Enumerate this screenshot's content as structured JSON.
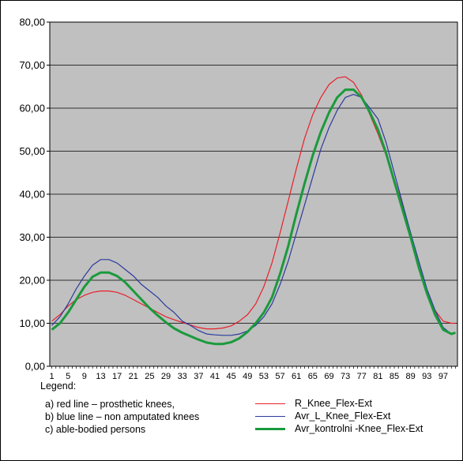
{
  "chart_data": {
    "type": "line",
    "title": "",
    "xlabel": "",
    "ylabel": "",
    "ylim": [
      0,
      80
    ],
    "xlim": [
      1,
      100
    ],
    "yticks": [
      "0,00",
      "10,00",
      "20,00",
      "30,00",
      "40,00",
      "50,00",
      "60,00",
      "70,00",
      "80,00"
    ],
    "xticks": [
      "1",
      "5",
      "9",
      "13",
      "17",
      "21",
      "25",
      "29",
      "33",
      "37",
      "41",
      "45",
      "49",
      "53",
      "57",
      "61",
      "65",
      "69",
      "73",
      "77",
      "81",
      "85",
      "89",
      "93",
      "97"
    ],
    "grid": true,
    "plot_background": "#c0c0c0",
    "series": [
      {
        "name": "R_Knee_Flex-Ext",
        "color": "#e8202a",
        "x": [
          1,
          3,
          5,
          7,
          9,
          11,
          13,
          15,
          17,
          19,
          21,
          23,
          25,
          27,
          29,
          31,
          33,
          35,
          37,
          39,
          41,
          43,
          45,
          47,
          49,
          51,
          53,
          55,
          57,
          59,
          61,
          63,
          65,
          67,
          69,
          71,
          73,
          75,
          77,
          79,
          81,
          83,
          85,
          87,
          89,
          91,
          93,
          95,
          97,
          99,
          100
        ],
        "y": [
          10.5,
          12.0,
          14.0,
          15.5,
          16.5,
          17.2,
          17.5,
          17.5,
          17.2,
          16.5,
          15.5,
          14.5,
          13.5,
          12.5,
          11.5,
          10.8,
          10.2,
          9.6,
          9.0,
          8.7,
          8.7,
          8.9,
          9.4,
          10.5,
          12.0,
          14.5,
          18.5,
          24.0,
          31.0,
          38.5,
          46.0,
          53.0,
          58.5,
          62.5,
          65.5,
          67.0,
          67.3,
          66.0,
          63.0,
          58.5,
          54.0,
          49.0,
          43.5,
          37.5,
          31.0,
          23.5,
          17.5,
          13.0,
          10.5,
          10.0,
          10.0
        ]
      },
      {
        "name": "Avr_L_Knee_Flex-Ext",
        "color": "#2a3b9c",
        "x": [
          1,
          3,
          5,
          7,
          9,
          11,
          13,
          15,
          17,
          19,
          21,
          23,
          25,
          27,
          29,
          31,
          33,
          35,
          37,
          39,
          41,
          43,
          45,
          47,
          49,
          51,
          53,
          55,
          57,
          59,
          61,
          63,
          65,
          67,
          69,
          71,
          73,
          75,
          77,
          79,
          81,
          83,
          85,
          87,
          89,
          91,
          93,
          95,
          97,
          99,
          100
        ],
        "y": [
          9.5,
          11.5,
          14.5,
          18.0,
          21.0,
          23.5,
          24.8,
          24.8,
          24.0,
          22.5,
          21.0,
          19.0,
          17.5,
          16.0,
          14.0,
          12.5,
          10.5,
          9.5,
          8.3,
          7.5,
          7.3,
          7.2,
          7.2,
          7.5,
          8.2,
          9.5,
          11.5,
          14.5,
          19.0,
          24.5,
          31.0,
          37.5,
          44.0,
          50.5,
          55.5,
          59.5,
          62.5,
          63.2,
          62.5,
          60.0,
          57.5,
          52.0,
          45.0,
          38.0,
          31.0,
          24.5,
          18.0,
          13.0,
          9.0,
          7.5,
          7.8
        ]
      },
      {
        "name": "Avr_kontrolni -Knee_Flex-Ext",
        "color": "#1a9a3c",
        "x": [
          1,
          3,
          5,
          7,
          9,
          11,
          13,
          15,
          17,
          19,
          21,
          23,
          25,
          27,
          29,
          31,
          33,
          35,
          37,
          39,
          41,
          43,
          45,
          47,
          49,
          51,
          53,
          55,
          57,
          59,
          61,
          63,
          65,
          67,
          69,
          71,
          73,
          75,
          77,
          79,
          81,
          83,
          85,
          87,
          89,
          91,
          93,
          95,
          97,
          99,
          100
        ],
        "y": [
          8.5,
          10.0,
          12.5,
          15.5,
          18.5,
          20.8,
          21.8,
          21.8,
          21.0,
          19.5,
          17.5,
          15.5,
          13.5,
          11.8,
          10.2,
          8.8,
          7.8,
          7.0,
          6.2,
          5.5,
          5.2,
          5.2,
          5.6,
          6.5,
          8.0,
          10.0,
          12.5,
          16.0,
          21.5,
          28.0,
          35.5,
          42.5,
          49.0,
          54.5,
          59.0,
          62.5,
          64.3,
          64.3,
          62.5,
          59.0,
          55.0,
          49.5,
          43.0,
          36.5,
          30.0,
          23.0,
          17.0,
          12.0,
          8.5,
          7.5,
          7.8
        ]
      }
    ]
  },
  "legend_note": {
    "heading": "Legend:",
    "line_a": "a) red line – prosthetic knees,",
    "line_b": "b) blue line – non amputated knees",
    "line_c": "c) able-bodied persons"
  }
}
